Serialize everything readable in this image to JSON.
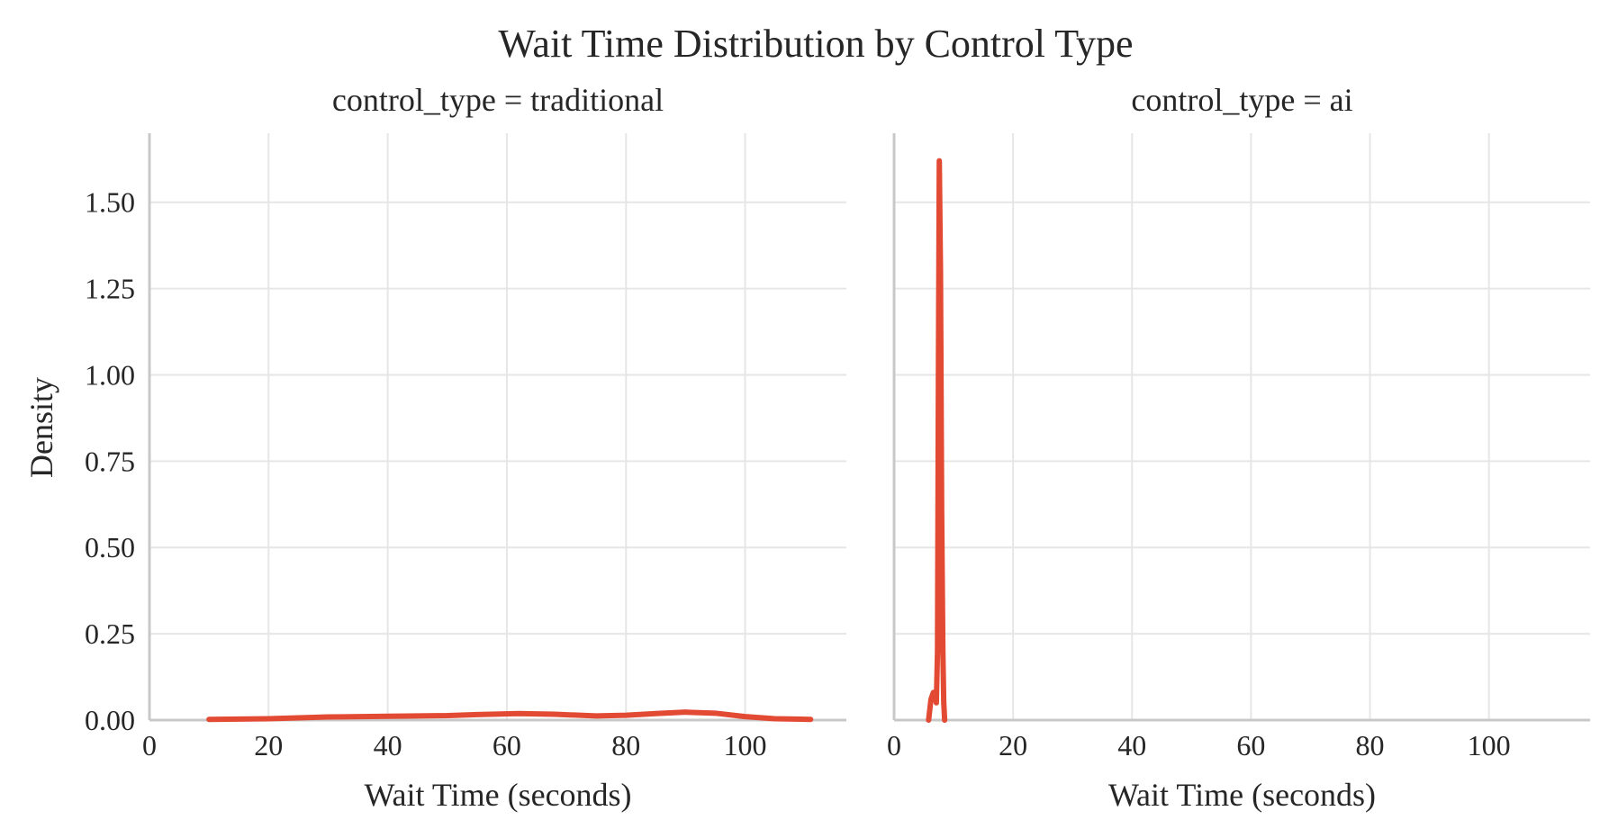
{
  "chart_data": {
    "type": "line",
    "title": "Wait Time Distribution by Control Type",
    "ylabel": "Density",
    "line_color": "#e34a33",
    "grid": true,
    "facets": [
      {
        "title": "control_type = traditional",
        "xlabel": "Wait Time (seconds)",
        "xlim": [
          0,
          117
        ],
        "ylim": [
          0,
          1.7
        ],
        "x_ticks": [
          "0",
          "20",
          "40",
          "60",
          "80",
          "100"
        ],
        "y_ticks": [
          "0.00",
          "0.25",
          "0.50",
          "0.75",
          "1.00",
          "1.25",
          "1.50"
        ],
        "series": [
          {
            "x": [
              10,
              20,
              30,
              40,
              50,
              55,
              62,
              68,
              75,
              80,
              85,
              90,
              95,
              100,
              105,
              111
            ],
            "y": [
              0.002,
              0.004,
              0.009,
              0.011,
              0.013,
              0.016,
              0.019,
              0.017,
              0.012,
              0.014,
              0.019,
              0.023,
              0.02,
              0.01,
              0.004,
              0.002
            ]
          }
        ]
      },
      {
        "title": "control_type = ai",
        "xlabel": "Wait Time (seconds)",
        "xlim": [
          0,
          117
        ],
        "ylim": [
          0,
          1.7
        ],
        "x_ticks": [
          "0",
          "20",
          "40",
          "60",
          "80",
          "100"
        ],
        "y_ticks": [],
        "series": [
          {
            "x": [
              5.8,
              6.2,
              6.6,
              6.9,
              7.1,
              7.3,
              7.45,
              7.6,
              7.8,
              8.0,
              8.2,
              8.35,
              8.5
            ],
            "y": [
              0.0,
              0.06,
              0.08,
              0.07,
              0.05,
              0.2,
              1.0,
              1.62,
              1.3,
              0.6,
              0.2,
              0.05,
              0.0
            ]
          }
        ]
      }
    ]
  }
}
